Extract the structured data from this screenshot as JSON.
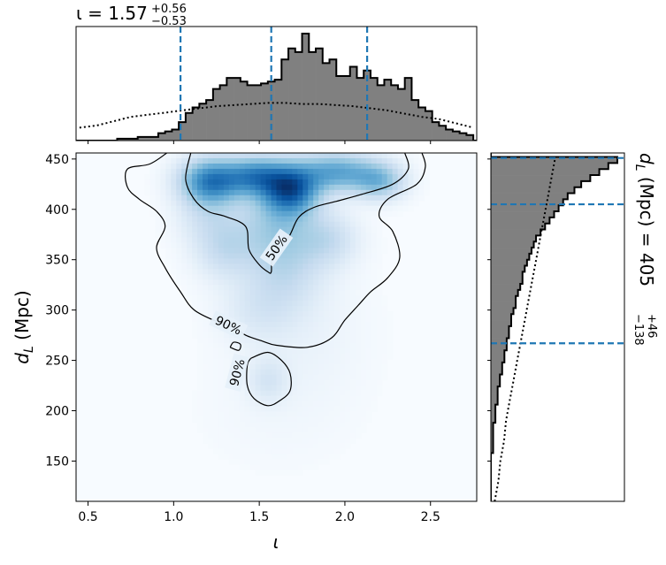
{
  "chart_data": {
    "type": "corner_plot",
    "top_title": {
      "symbol": "ι",
      "equals": " = ",
      "median": "1.57",
      "plus": "+0.56",
      "minus": "−0.53"
    },
    "right_title": {
      "symbol": "d",
      "subscript": "L",
      "unit": " (Mpc) = ",
      "median": "405",
      "plus": "+46",
      "minus": "−138"
    },
    "xlabel": "ι",
    "ylabel": {
      "symbol": "d",
      "subscript": "L",
      "unit": " (Mpc)"
    },
    "xlim": [
      0.43,
      2.77
    ],
    "ylim": [
      110,
      456
    ],
    "x_ticks": [
      0.5,
      1.0,
      1.5,
      2.0,
      2.5
    ],
    "x_tick_labels": [
      "0.5",
      "1.0",
      "1.5",
      "2.0",
      "2.5"
    ],
    "y_ticks": [
      150,
      200,
      250,
      300,
      350,
      400,
      450
    ],
    "y_tick_labels": [
      "150",
      "200",
      "250",
      "300",
      "350",
      "400",
      "450"
    ],
    "iota_quantiles": [
      1.04,
      1.57,
      2.13
    ],
    "dL_quantiles": [
      267,
      405,
      451
    ],
    "iota_posterior_hist": {
      "bin_start": 0.43,
      "bin_width": 0.04,
      "counts": [
        0,
        0,
        0,
        0,
        0,
        0,
        1,
        1,
        1,
        2,
        2,
        2,
        4,
        5,
        6,
        10,
        15,
        18,
        20,
        22,
        28,
        30,
        34,
        34,
        32,
        30,
        30,
        31,
        32,
        33,
        44,
        50,
        48,
        58,
        48,
        50,
        42,
        44,
        35,
        35,
        40,
        34,
        38,
        34,
        30,
        33,
        30,
        28,
        34,
        22,
        18,
        16,
        10,
        8,
        6,
        5,
        4,
        3,
        0,
        0
      ]
    },
    "iota_prior_curve": {
      "x": [
        0.45,
        0.55,
        0.65,
        0.75,
        0.85,
        0.95,
        1.05,
        1.15,
        1.25,
        1.35,
        1.45,
        1.55,
        1.65,
        1.75,
        1.85,
        1.95,
        2.05,
        2.15,
        2.25,
        2.35,
        2.45,
        2.55,
        2.65,
        2.75
      ],
      "y": [
        12,
        14,
        18,
        22,
        24,
        26,
        28,
        30,
        32,
        33,
        34,
        35,
        35,
        34,
        34,
        33,
        32,
        30,
        28,
        25,
        22,
        20,
        16,
        12
      ]
    },
    "dL_posterior_hist": {
      "bin_start": 110,
      "bin_width": 6,
      "counts": [
        0,
        0,
        0,
        0,
        0,
        0,
        0,
        0,
        1,
        1,
        1,
        1,
        1,
        2,
        2,
        2,
        3,
        3,
        3,
        4,
        4,
        5,
        5,
        6,
        6,
        7,
        7,
        8,
        8,
        9,
        9,
        10,
        11,
        11,
        12,
        13,
        14,
        14,
        15,
        16,
        17,
        18,
        19,
        20,
        22,
        24,
        26,
        28,
        30,
        32,
        34,
        37,
        40,
        44,
        48,
        52,
        56,
        0
      ]
    },
    "dL_prior_curve": {
      "y": [
        110,
        130,
        150,
        170,
        190,
        210,
        230,
        250,
        270,
        290,
        310,
        330,
        350,
        370,
        390,
        410,
        430,
        450
      ],
      "x": [
        2,
        4,
        5,
        7,
        8,
        10,
        12,
        14,
        16,
        18,
        20,
        22,
        24,
        26,
        28,
        30,
        32,
        34
      ]
    },
    "density_blobs": [
      {
        "x": 1.68,
        "y": 420,
        "sx": 0.11,
        "sy": 16,
        "w": 1.0
      },
      {
        "x": 1.22,
        "y": 428,
        "sx": 0.12,
        "sy": 15,
        "w": 0.85
      },
      {
        "x": 1.48,
        "y": 433,
        "sx": 0.12,
        "sy": 13,
        "w": 0.72
      },
      {
        "x": 1.95,
        "y": 437,
        "sx": 0.16,
        "sy": 13,
        "w": 0.62
      },
      {
        "x": 2.2,
        "y": 428,
        "sx": 0.1,
        "sy": 12,
        "w": 0.45
      },
      {
        "x": 1.6,
        "y": 385,
        "sx": 0.16,
        "sy": 25,
        "w": 0.35
      },
      {
        "x": 1.3,
        "y": 360,
        "sx": 0.12,
        "sy": 20,
        "w": 0.22
      },
      {
        "x": 1.65,
        "y": 340,
        "sx": 0.15,
        "sy": 26,
        "w": 0.22
      },
      {
        "x": 1.9,
        "y": 370,
        "sx": 0.12,
        "sy": 18,
        "w": 0.22
      },
      {
        "x": 1.2,
        "y": 395,
        "sx": 0.12,
        "sy": 20,
        "w": 0.18
      },
      {
        "x": 1.5,
        "y": 300,
        "sx": 0.15,
        "sy": 22,
        "w": 0.12
      },
      {
        "x": 1.55,
        "y": 230,
        "sx": 0.08,
        "sy": 15,
        "w": 0.14
      },
      {
        "x": 1.75,
        "y": 280,
        "sx": 0.25,
        "sy": 45,
        "w": 0.05
      },
      {
        "x": 1.6,
        "y": 200,
        "sx": 0.3,
        "sy": 40,
        "w": 0.02
      }
    ],
    "contours": [
      {
        "label": "50%",
        "points": [
          [
            1.1,
            456
          ],
          [
            1.07,
            430
          ],
          [
            1.12,
            410
          ],
          [
            1.2,
            398
          ],
          [
            1.3,
            393
          ],
          [
            1.42,
            383
          ],
          [
            1.44,
            360
          ],
          [
            1.5,
            345
          ],
          [
            1.55,
            338
          ],
          [
            1.57,
            338
          ],
          [
            1.58,
            355
          ],
          [
            1.67,
            372
          ],
          [
            1.73,
            392
          ],
          [
            1.82,
            402
          ],
          [
            1.95,
            408
          ],
          [
            2.1,
            415
          ],
          [
            2.28,
            425
          ],
          [
            2.37,
            440
          ],
          [
            2.35,
            456
          ]
        ],
        "label_pos": [
          1.6,
          362
        ],
        "label_angle": -55
      },
      {
        "label": "90%",
        "points": [
          [
            0.96,
            456
          ],
          [
            0.86,
            445
          ],
          [
            0.73,
            440
          ],
          [
            0.73,
            422
          ],
          [
            0.8,
            410
          ],
          [
            0.9,
            398
          ],
          [
            0.95,
            383
          ],
          [
            0.9,
            362
          ],
          [
            0.95,
            342
          ],
          [
            1.04,
            318
          ],
          [
            1.12,
            300
          ],
          [
            1.26,
            288
          ],
          [
            1.36,
            282
          ],
          [
            1.42,
            275
          ],
          [
            1.52,
            269
          ],
          [
            1.6,
            265
          ],
          [
            1.78,
            263
          ],
          [
            1.92,
            272
          ],
          [
            2.0,
            290
          ],
          [
            2.08,
            305
          ],
          [
            2.15,
            318
          ],
          [
            2.25,
            332
          ],
          [
            2.32,
            352
          ],
          [
            2.28,
            378
          ],
          [
            2.2,
            393
          ],
          [
            2.25,
            410
          ],
          [
            2.42,
            425
          ],
          [
            2.47,
            442
          ],
          [
            2.45,
            456
          ]
        ],
        "label_pos": [
          1.32,
          285
        ],
        "label_angle": 25
      },
      {
        "label": "",
        "points": [
          [
            1.33,
            263
          ],
          [
            1.38,
            260
          ],
          [
            1.39,
            266
          ],
          [
            1.35,
            268
          ],
          [
            1.33,
            263
          ]
        ]
      },
      {
        "label": "90%",
        "points": [
          [
            1.45,
            252
          ],
          [
            1.55,
            258
          ],
          [
            1.63,
            250
          ],
          [
            1.68,
            237
          ],
          [
            1.68,
            220
          ],
          [
            1.62,
            210
          ],
          [
            1.55,
            205
          ],
          [
            1.47,
            212
          ],
          [
            1.43,
            225
          ],
          [
            1.43,
            245
          ],
          [
            1.45,
            252
          ]
        ],
        "label_pos": [
          1.37,
          238
        ],
        "label_angle": -75
      }
    ]
  }
}
